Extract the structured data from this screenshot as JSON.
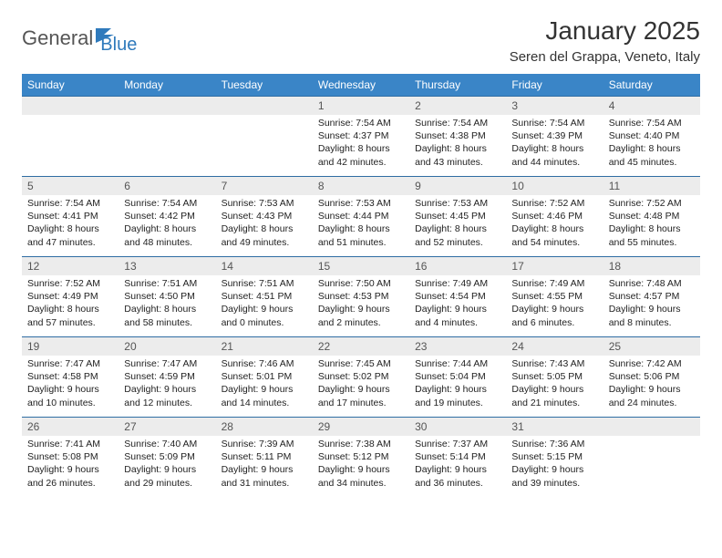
{
  "brand": {
    "text1": "General",
    "text2": "Blue"
  },
  "title": "January 2025",
  "location": "Seren del Grappa, Veneto, Italy",
  "colors": {
    "header_bg": "#3a85c7",
    "daynum_bg": "#ececec",
    "row_border": "#2f6da3"
  },
  "weekdays": [
    "Sunday",
    "Monday",
    "Tuesday",
    "Wednesday",
    "Thursday",
    "Friday",
    "Saturday"
  ],
  "weeks": [
    [
      null,
      null,
      null,
      {
        "n": "1",
        "sr": "7:54 AM",
        "ss": "4:37 PM",
        "dl": "8 hours and 42 minutes."
      },
      {
        "n": "2",
        "sr": "7:54 AM",
        "ss": "4:38 PM",
        "dl": "8 hours and 43 minutes."
      },
      {
        "n": "3",
        "sr": "7:54 AM",
        "ss": "4:39 PM",
        "dl": "8 hours and 44 minutes."
      },
      {
        "n": "4",
        "sr": "7:54 AM",
        "ss": "4:40 PM",
        "dl": "8 hours and 45 minutes."
      }
    ],
    [
      {
        "n": "5",
        "sr": "7:54 AM",
        "ss": "4:41 PM",
        "dl": "8 hours and 47 minutes."
      },
      {
        "n": "6",
        "sr": "7:54 AM",
        "ss": "4:42 PM",
        "dl": "8 hours and 48 minutes."
      },
      {
        "n": "7",
        "sr": "7:53 AM",
        "ss": "4:43 PM",
        "dl": "8 hours and 49 minutes."
      },
      {
        "n": "8",
        "sr": "7:53 AM",
        "ss": "4:44 PM",
        "dl": "8 hours and 51 minutes."
      },
      {
        "n": "9",
        "sr": "7:53 AM",
        "ss": "4:45 PM",
        "dl": "8 hours and 52 minutes."
      },
      {
        "n": "10",
        "sr": "7:52 AM",
        "ss": "4:46 PM",
        "dl": "8 hours and 54 minutes."
      },
      {
        "n": "11",
        "sr": "7:52 AM",
        "ss": "4:48 PM",
        "dl": "8 hours and 55 minutes."
      }
    ],
    [
      {
        "n": "12",
        "sr": "7:52 AM",
        "ss": "4:49 PM",
        "dl": "8 hours and 57 minutes."
      },
      {
        "n": "13",
        "sr": "7:51 AM",
        "ss": "4:50 PM",
        "dl": "8 hours and 58 minutes."
      },
      {
        "n": "14",
        "sr": "7:51 AM",
        "ss": "4:51 PM",
        "dl": "9 hours and 0 minutes."
      },
      {
        "n": "15",
        "sr": "7:50 AM",
        "ss": "4:53 PM",
        "dl": "9 hours and 2 minutes."
      },
      {
        "n": "16",
        "sr": "7:49 AM",
        "ss": "4:54 PM",
        "dl": "9 hours and 4 minutes."
      },
      {
        "n": "17",
        "sr": "7:49 AM",
        "ss": "4:55 PM",
        "dl": "9 hours and 6 minutes."
      },
      {
        "n": "18",
        "sr": "7:48 AM",
        "ss": "4:57 PM",
        "dl": "9 hours and 8 minutes."
      }
    ],
    [
      {
        "n": "19",
        "sr": "7:47 AM",
        "ss": "4:58 PM",
        "dl": "9 hours and 10 minutes."
      },
      {
        "n": "20",
        "sr": "7:47 AM",
        "ss": "4:59 PM",
        "dl": "9 hours and 12 minutes."
      },
      {
        "n": "21",
        "sr": "7:46 AM",
        "ss": "5:01 PM",
        "dl": "9 hours and 14 minutes."
      },
      {
        "n": "22",
        "sr": "7:45 AM",
        "ss": "5:02 PM",
        "dl": "9 hours and 17 minutes."
      },
      {
        "n": "23",
        "sr": "7:44 AM",
        "ss": "5:04 PM",
        "dl": "9 hours and 19 minutes."
      },
      {
        "n": "24",
        "sr": "7:43 AM",
        "ss": "5:05 PM",
        "dl": "9 hours and 21 minutes."
      },
      {
        "n": "25",
        "sr": "7:42 AM",
        "ss": "5:06 PM",
        "dl": "9 hours and 24 minutes."
      }
    ],
    [
      {
        "n": "26",
        "sr": "7:41 AM",
        "ss": "5:08 PM",
        "dl": "9 hours and 26 minutes."
      },
      {
        "n": "27",
        "sr": "7:40 AM",
        "ss": "5:09 PM",
        "dl": "9 hours and 29 minutes."
      },
      {
        "n": "28",
        "sr": "7:39 AM",
        "ss": "5:11 PM",
        "dl": "9 hours and 31 minutes."
      },
      {
        "n": "29",
        "sr": "7:38 AM",
        "ss": "5:12 PM",
        "dl": "9 hours and 34 minutes."
      },
      {
        "n": "30",
        "sr": "7:37 AM",
        "ss": "5:14 PM",
        "dl": "9 hours and 36 minutes."
      },
      {
        "n": "31",
        "sr": "7:36 AM",
        "ss": "5:15 PM",
        "dl": "9 hours and 39 minutes."
      },
      null
    ]
  ],
  "labels": {
    "sunrise": "Sunrise:",
    "sunset": "Sunset:",
    "daylight": "Daylight:"
  }
}
